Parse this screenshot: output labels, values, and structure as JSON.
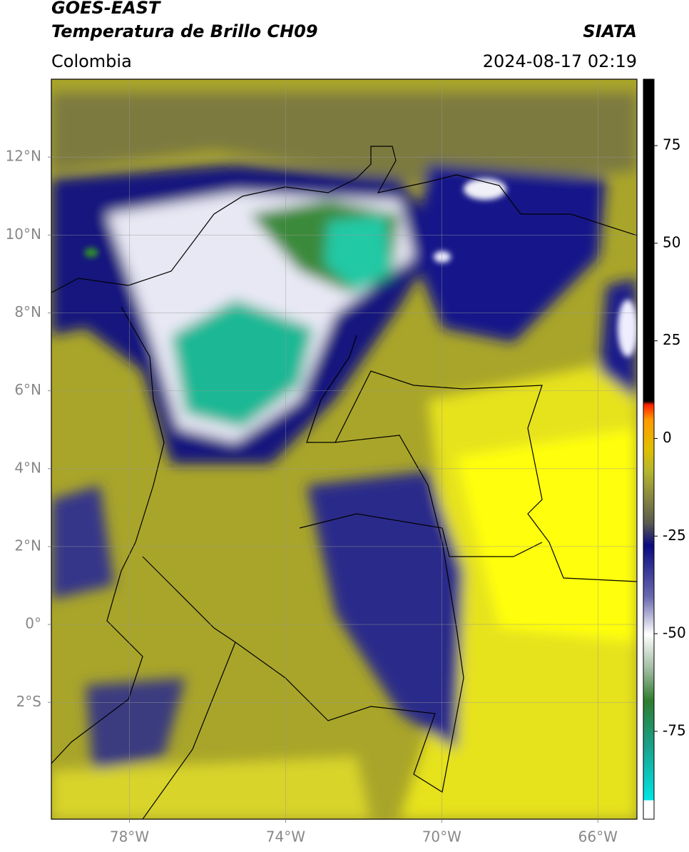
{
  "header": {
    "title": "GOES-EAST",
    "subtitle": "Temperatura de Brillo CH09",
    "source": "SIATA",
    "region": "Colombia",
    "datetime": "2024-08-17 02:19"
  },
  "map": {
    "lon_range": [
      -80,
      -65
    ],
    "lat_range": [
      -5,
      14
    ],
    "lon_ticks": [
      {
        "value": -78,
        "label": "78°W"
      },
      {
        "value": -74,
        "label": "74°W"
      },
      {
        "value": -70,
        "label": "70°W"
      },
      {
        "value": -66,
        "label": "66°W"
      }
    ],
    "lat_ticks": [
      {
        "value": 12,
        "label": "12°N"
      },
      {
        "value": 10,
        "label": "10°N"
      },
      {
        "value": 8,
        "label": "8°N"
      },
      {
        "value": 6,
        "label": "6°N"
      },
      {
        "value": 4,
        "label": "4°N"
      },
      {
        "value": 2,
        "label": "2°N"
      },
      {
        "value": 0,
        "label": "0°"
      },
      {
        "value": -2,
        "label": "2°S"
      }
    ]
  },
  "colorbar": {
    "range": [
      -97.5,
      92
    ],
    "ticks": [
      75,
      50,
      25,
      0,
      -25,
      -50,
      -75
    ]
  }
}
